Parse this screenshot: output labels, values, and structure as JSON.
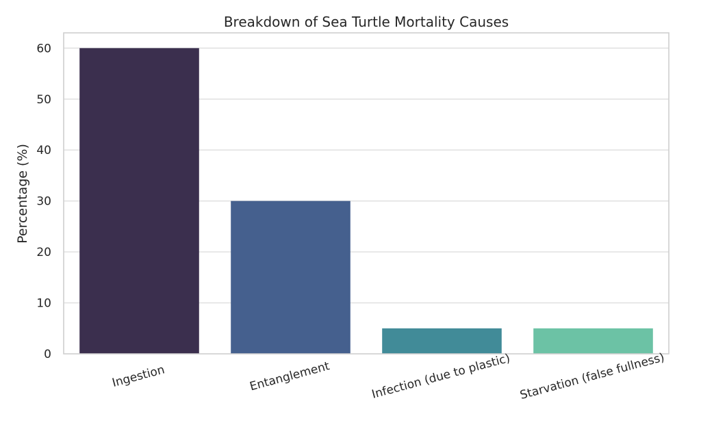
{
  "chart_data": {
    "type": "bar",
    "title": "Breakdown of Sea Turtle Mortality Causes",
    "xlabel": "",
    "ylabel": "Percentage (%)",
    "categories": [
      "Ingestion",
      "Entanglement",
      "Infection (due to plastic)",
      "Starvation (false fullness)"
    ],
    "values": [
      60,
      30,
      5,
      5
    ],
    "colors": [
      "#3b2f4e",
      "#45608e",
      "#418b98",
      "#6cc2a5"
    ],
    "ylim": [
      0,
      63
    ],
    "yticks": [
      0,
      10,
      20,
      30,
      40,
      50,
      60
    ],
    "grid": true,
    "legend": "none"
  }
}
